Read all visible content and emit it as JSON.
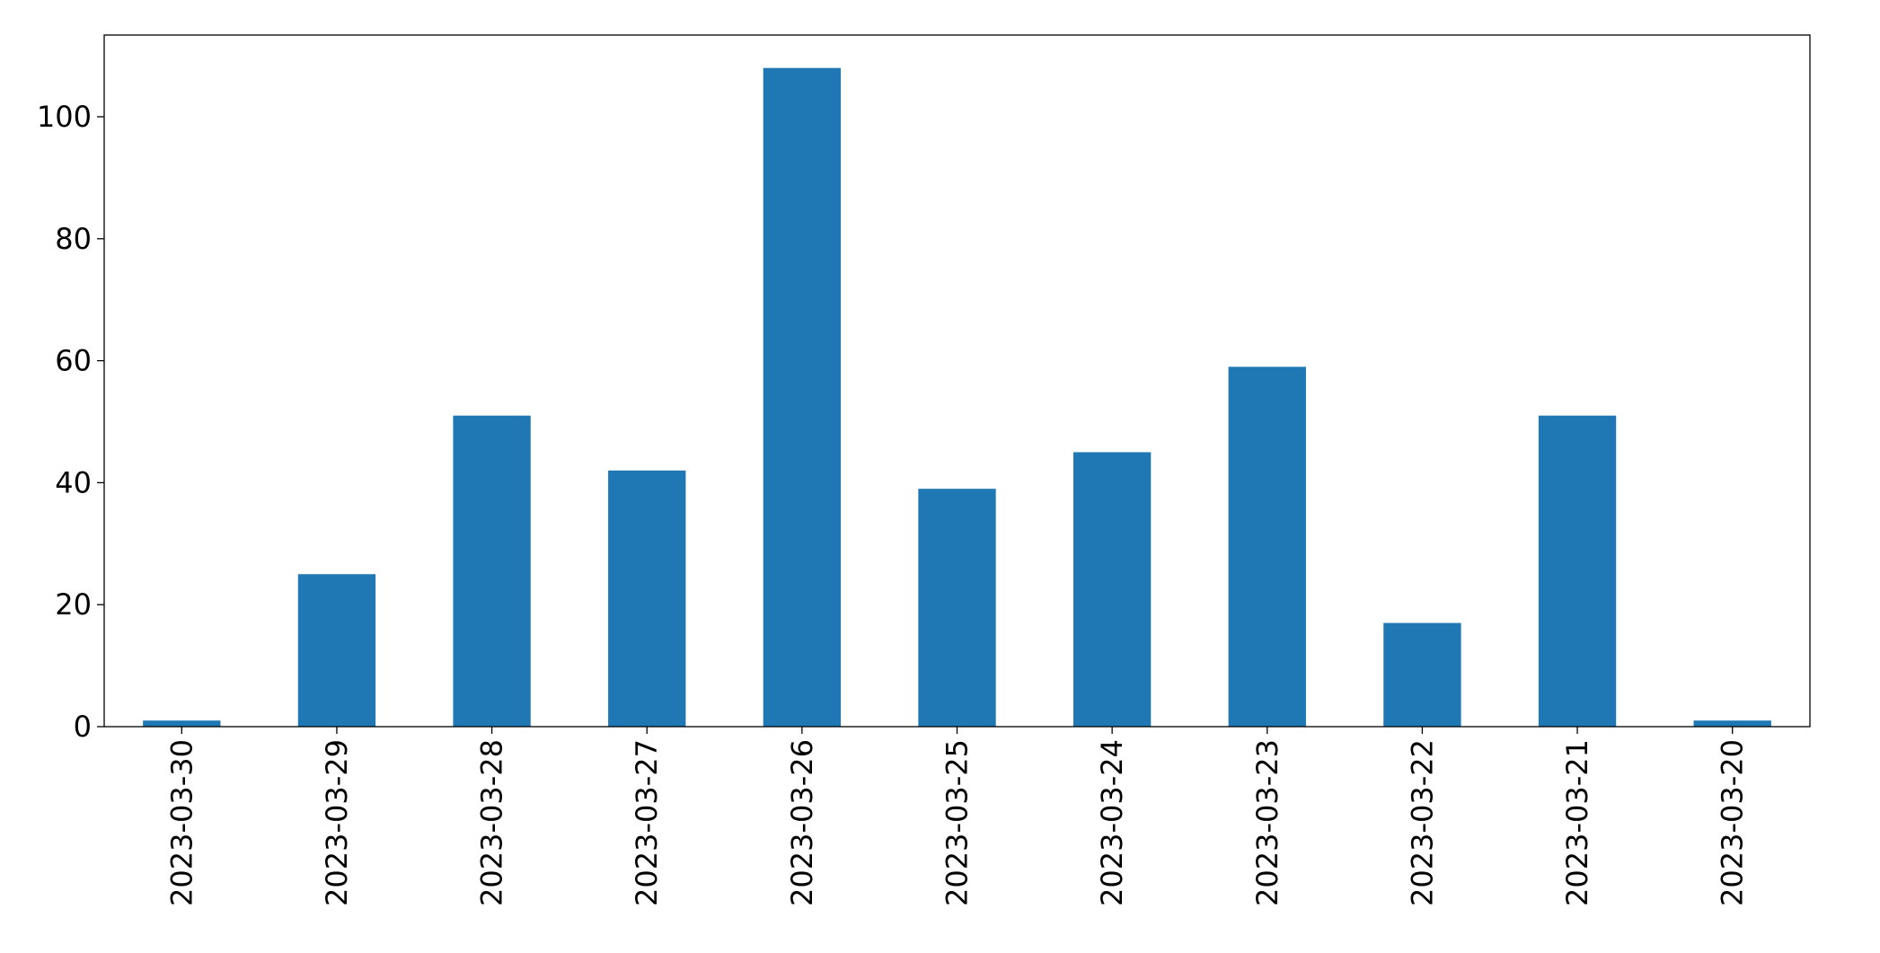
{
  "chart_data": {
    "type": "bar",
    "categories": [
      "2023-03-30",
      "2023-03-29",
      "2023-03-28",
      "2023-03-27",
      "2023-03-26",
      "2023-03-25",
      "2023-03-24",
      "2023-03-23",
      "2023-03-22",
      "2023-03-21",
      "2023-03-20"
    ],
    "values": [
      1,
      25,
      51,
      42,
      108,
      39,
      45,
      59,
      17,
      51,
      1
    ],
    "color": "#1f77b4",
    "ylim": [
      0,
      113.4
    ],
    "yticks": [
      0,
      20,
      40,
      60,
      80,
      100
    ],
    "grid": false
  }
}
